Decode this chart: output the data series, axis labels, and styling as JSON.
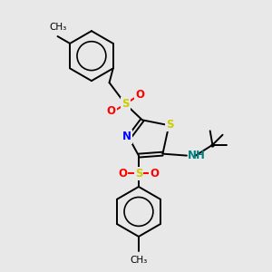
{
  "bg_color": "#e8e8e8",
  "bond_color": "#000000",
  "S_color": "#cccc00",
  "N_color": "#0000ff",
  "O_color": "#ff0000",
  "NH_color": "#008080",
  "C_color": "#000000",
  "figsize": [
    3.0,
    3.0
  ],
  "dpi": 100,
  "xlim": [
    0,
    300
  ],
  "ylim": [
    0,
    300
  ]
}
